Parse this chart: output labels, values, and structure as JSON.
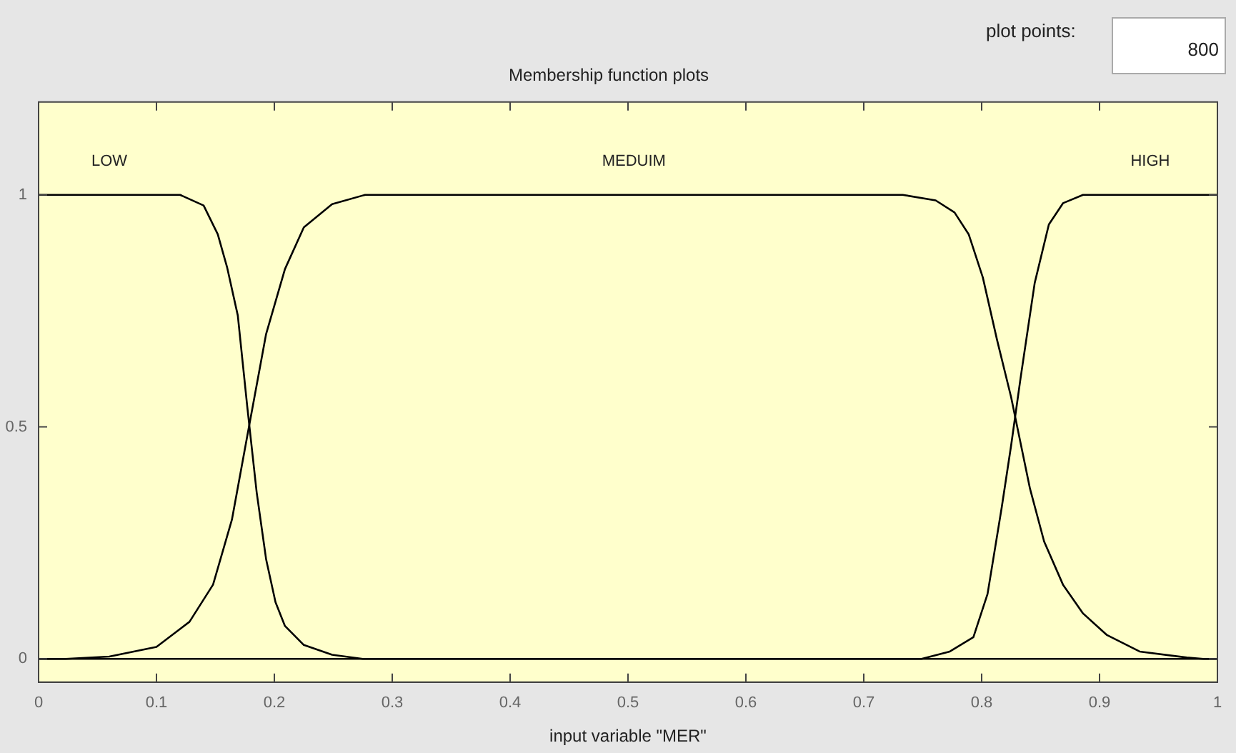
{
  "chart_data": {
    "type": "line",
    "title": "Membership function plots",
    "xlabel": "input variable \"MER\"",
    "annotations": [
      "plot points:",
      "800"
    ],
    "series": [
      {
        "name": "LOW",
        "color": "#000000",
        "x": [
          0,
          0.12,
          0.14,
          0.152,
          0.16,
          0.169,
          0.177,
          0.185,
          0.193,
          0.201,
          0.209,
          0.225,
          0.249,
          0.275,
          1
        ],
        "values": [
          1,
          1,
          0.977,
          0.915,
          0.843,
          0.74,
          0.544,
          0.359,
          0.215,
          0.122,
          0.071,
          0.03,
          0.009,
          0,
          0
        ]
      },
      {
        "name": "MEDUIM",
        "color": "#000000",
        "x": [
          0,
          0.023,
          0.06,
          0.1,
          0.128,
          0.148,
          0.164,
          0.177,
          0.193,
          0.209,
          0.225,
          0.249,
          0.277,
          0.733,
          0.761,
          0.777,
          0.789,
          0.801,
          0.813,
          0.825,
          0.841,
          0.853,
          0.869,
          0.886,
          0.906,
          0.934,
          0.974,
          0.988,
          1
        ],
        "values": [
          0,
          0,
          0.005,
          0.026,
          0.08,
          0.16,
          0.3,
          0.48,
          0.7,
          0.84,
          0.93,
          0.98,
          1,
          1,
          0.988,
          0.962,
          0.915,
          0.822,
          0.688,
          0.564,
          0.367,
          0.253,
          0.16,
          0.098,
          0.052,
          0.016,
          0.003,
          0,
          0
        ]
      },
      {
        "name": "HIGH",
        "color": "#000000",
        "x": [
          0,
          0.749,
          0.773,
          0.793,
          0.805,
          0.817,
          0.825,
          0.833,
          0.845,
          0.857,
          0.869,
          0.886,
          1
        ],
        "values": [
          0,
          0,
          0.016,
          0.047,
          0.14,
          0.326,
          0.46,
          0.605,
          0.81,
          0.936,
          0.982,
          1,
          1
        ]
      }
    ],
    "xlim": [
      0,
      1
    ],
    "xticks": [
      0,
      0.1,
      0.2,
      0.3,
      0.4,
      0.5,
      0.6,
      0.7,
      0.8,
      0.9,
      1
    ],
    "ylim": [
      -0.05,
      1.2
    ],
    "yticks": [
      0,
      0.5,
      1
    ],
    "legend": false,
    "marker": "none",
    "line_style": "solid"
  }
}
